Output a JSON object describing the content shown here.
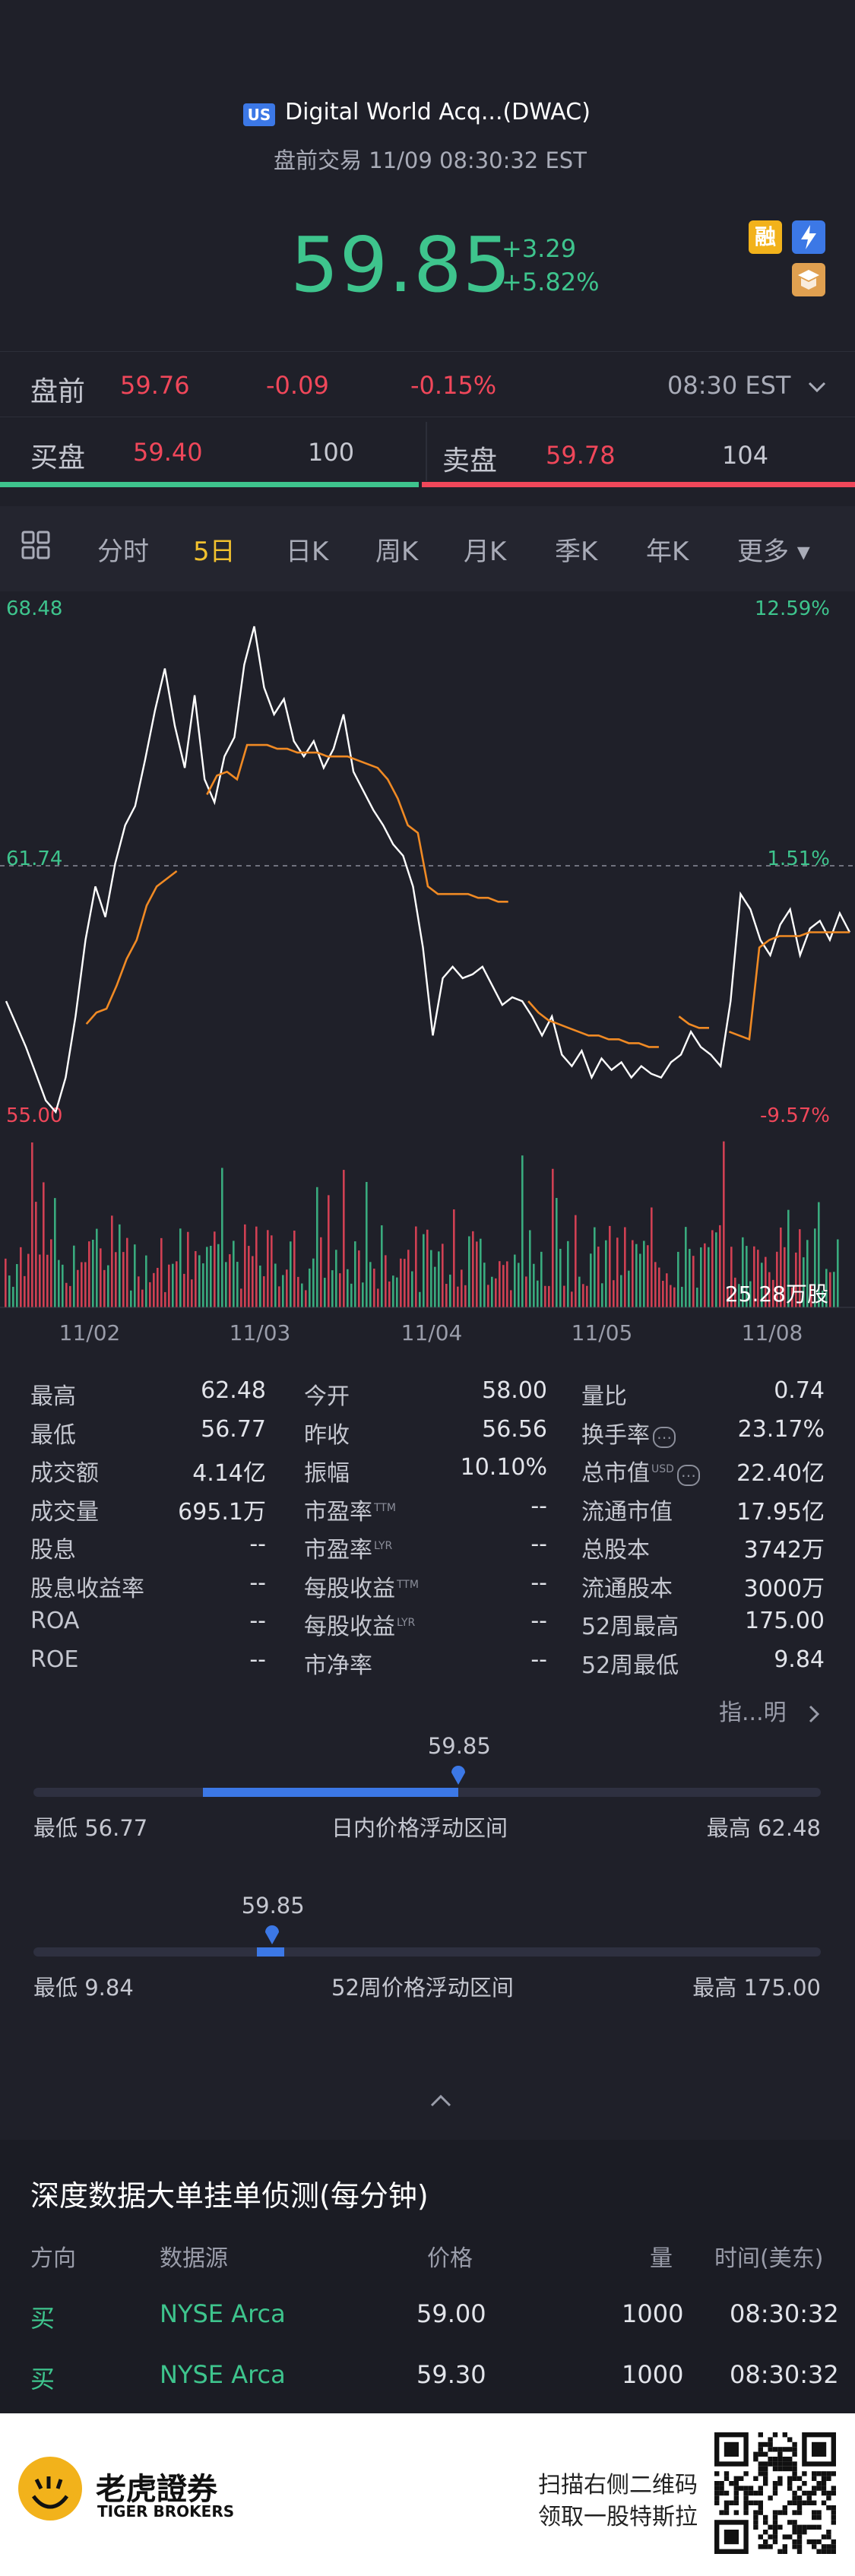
{
  "header": {
    "market_badge": "US",
    "stock_name": "Digital World Acq...(DWAC)",
    "subtitle": "盘前交易 11/09 08:30:32 EST",
    "price": "59.85",
    "change": "+3.29",
    "change_pct": "+5.82%",
    "badge_margin": "融",
    "icons": [
      "flash-icon",
      "book-icon"
    ]
  },
  "premarket": {
    "label": "盘前",
    "price": "59.76",
    "change": "-0.09",
    "change_pct": "-0.15%",
    "time": "08:30 EST"
  },
  "orderbook": {
    "bid_label": "买盘",
    "bid_price": "59.40",
    "bid_volume": "100",
    "ask_label": "卖盘",
    "ask_price": "59.78",
    "ask_volume": "104",
    "bid_ratio": 0.49
  },
  "tabs": [
    {
      "label": "分时",
      "active": false
    },
    {
      "label": "5日",
      "active": true
    },
    {
      "label": "日K",
      "active": false
    },
    {
      "label": "周K",
      "active": false
    },
    {
      "label": "月K",
      "active": false
    },
    {
      "label": "季K",
      "active": false
    },
    {
      "label": "年K",
      "active": false
    },
    {
      "label": "更多 ▾",
      "active": false
    }
  ],
  "chart_data": {
    "type": "line",
    "y_left_top": "68.48",
    "y_left_mid": "61.74",
    "y_left_bottom": "55.00",
    "y_right_top": "12.59%",
    "y_right_mid": "1.51%",
    "y_right_bottom": "-9.57%",
    "ylim": [
      55.0,
      68.48
    ],
    "ref_price": 61.74,
    "x_labels": [
      "11/02",
      "11/03",
      "11/04",
      "11/05",
      "11/08"
    ],
    "volume_label": "25.28万股",
    "series": [
      {
        "values": [
          58.2,
          57.6,
          57.0,
          56.3,
          55.6,
          55.3,
          56.2,
          57.8,
          59.8,
          61.2,
          60.4,
          61.8,
          62.8,
          63.3,
          64.5,
          65.8,
          66.9,
          65.4,
          64.3,
          66.2,
          64.0,
          63.4,
          64.6,
          65.1,
          67.0,
          68.0,
          66.4,
          65.7,
          66.1,
          65.0,
          64.6,
          65.0,
          64.3,
          64.8,
          65.7,
          64.2,
          63.7,
          63.2,
          62.8,
          62.3,
          62.0,
          61.2,
          59.6,
          57.3,
          58.8,
          59.1,
          58.8,
          58.9,
          59.1,
          58.6,
          58.1,
          58.3,
          58.2,
          57.8,
          57.3,
          57.8,
          56.8,
          56.5,
          56.9,
          56.2,
          56.7,
          56.4,
          56.6,
          56.2,
          56.5,
          56.3,
          56.2,
          56.6,
          56.8,
          57.4,
          57.0,
          56.8,
          56.5,
          58.2,
          61.0,
          60.6,
          59.8,
          59.4,
          60.2,
          60.6,
          59.4,
          60.1,
          60.3,
          59.8,
          60.5,
          60.0
        ]
      },
      {
        "values": [
          null,
          null,
          null,
          null,
          null,
          null,
          null,
          null,
          57.6,
          57.9,
          58.0,
          58.6,
          59.3,
          59.8,
          60.7,
          61.2,
          61.4,
          61.6,
          null,
          null,
          63.6,
          64.1,
          64.2,
          64.0,
          64.9,
          64.9,
          64.9,
          64.8,
          64.8,
          64.7,
          64.7,
          64.7,
          64.6,
          64.6,
          64.6,
          64.5,
          64.4,
          64.3,
          64.0,
          63.5,
          62.8,
          62.6,
          61.2,
          61.0,
          61.0,
          61.0,
          61.0,
          60.9,
          60.9,
          60.8,
          60.8,
          null,
          58.2,
          57.9,
          57.7,
          57.6,
          57.5,
          57.4,
          57.3,
          57.3,
          57.2,
          57.2,
          57.1,
          57.1,
          57.0,
          57.0,
          null,
          57.8,
          57.6,
          57.5,
          57.5,
          null,
          57.4,
          57.3,
          57.2,
          59.6,
          59.8,
          59.9,
          59.9,
          59.9,
          60.0,
          60.0,
          60.0,
          60.0,
          60.0
        ]
      }
    ]
  },
  "stats": [
    [
      {
        "label": "最高",
        "value": "62.48"
      },
      {
        "label": "今开",
        "value": "58.00"
      },
      {
        "label": "量比",
        "value": "0.74"
      }
    ],
    [
      {
        "label": "最低",
        "value": "56.77"
      },
      {
        "label": "昨收",
        "value": "56.56"
      },
      {
        "label": "换手率",
        "value": "23.17%"
      }
    ],
    [
      {
        "label": "成交额",
        "value": "4.14亿"
      },
      {
        "label": "振幅",
        "value": "10.10%"
      },
      {
        "label": "总市值",
        "value": "22.40亿"
      }
    ],
    [
      {
        "label": "成交量",
        "value": "695.1万"
      },
      {
        "label": "市盈率",
        "value": "--"
      },
      {
        "label": "流通市值",
        "value": "17.95亿"
      }
    ],
    [
      {
        "label": "股息",
        "value": "--"
      },
      {
        "label": "市盈率",
        "value": "--"
      },
      {
        "label": "总股本",
        "value": "3742万"
      }
    ],
    [
      {
        "label": "股息收益率",
        "value": "--"
      },
      {
        "label": "每股收益",
        "value": "--"
      },
      {
        "label": "流通股本",
        "value": "3000万"
      }
    ],
    [
      {
        "label": "ROA",
        "value": "--"
      },
      {
        "label": "每股收益",
        "value": "--"
      },
      {
        "label": "52周最高",
        "value": "175.00"
      }
    ],
    [
      {
        "label": "ROE",
        "value": "--"
      },
      {
        "label": "市净率",
        "value": "--"
      },
      {
        "label": "52周最低",
        "value": "9.84"
      }
    ]
  ],
  "stats_sup": {
    "ttm": "TTM",
    "lyr": "LYR",
    "usd": "USD"
  },
  "stats_footer": "指...明",
  "intraday_range": {
    "current": "59.85",
    "low_label": "最低 56.77",
    "high_label": "最高 62.48",
    "title": "日内价格浮动区间",
    "low": 56.77,
    "high": 62.48,
    "value": 59.85
  },
  "week52_range": {
    "current": "59.85",
    "low_label": "最低 9.84",
    "high_label": "最高 175.00",
    "title": "52周价格浮动区间",
    "low": 9.84,
    "high": 175.0,
    "value": 59.85
  },
  "depth": {
    "title": "深度数据大单挂单侦测(每分钟)",
    "headers": [
      "方向",
      "数据源",
      "价格",
      "量",
      "时间(美东)"
    ],
    "rows": [
      {
        "dir": "买",
        "source": "NYSE Arca",
        "price": "59.00",
        "qty": "1000",
        "time": "08:30:32"
      },
      {
        "dir": "买",
        "source": "NYSE Arca",
        "price": "59.30",
        "qty": "1000",
        "time": "08:30:32"
      }
    ]
  },
  "footer": {
    "brand_cn": "老虎證券",
    "brand_en": "TIGER BROKERS",
    "scan_line1": "扫描右侧二维码",
    "scan_line2": "领取一股特斯拉"
  }
}
